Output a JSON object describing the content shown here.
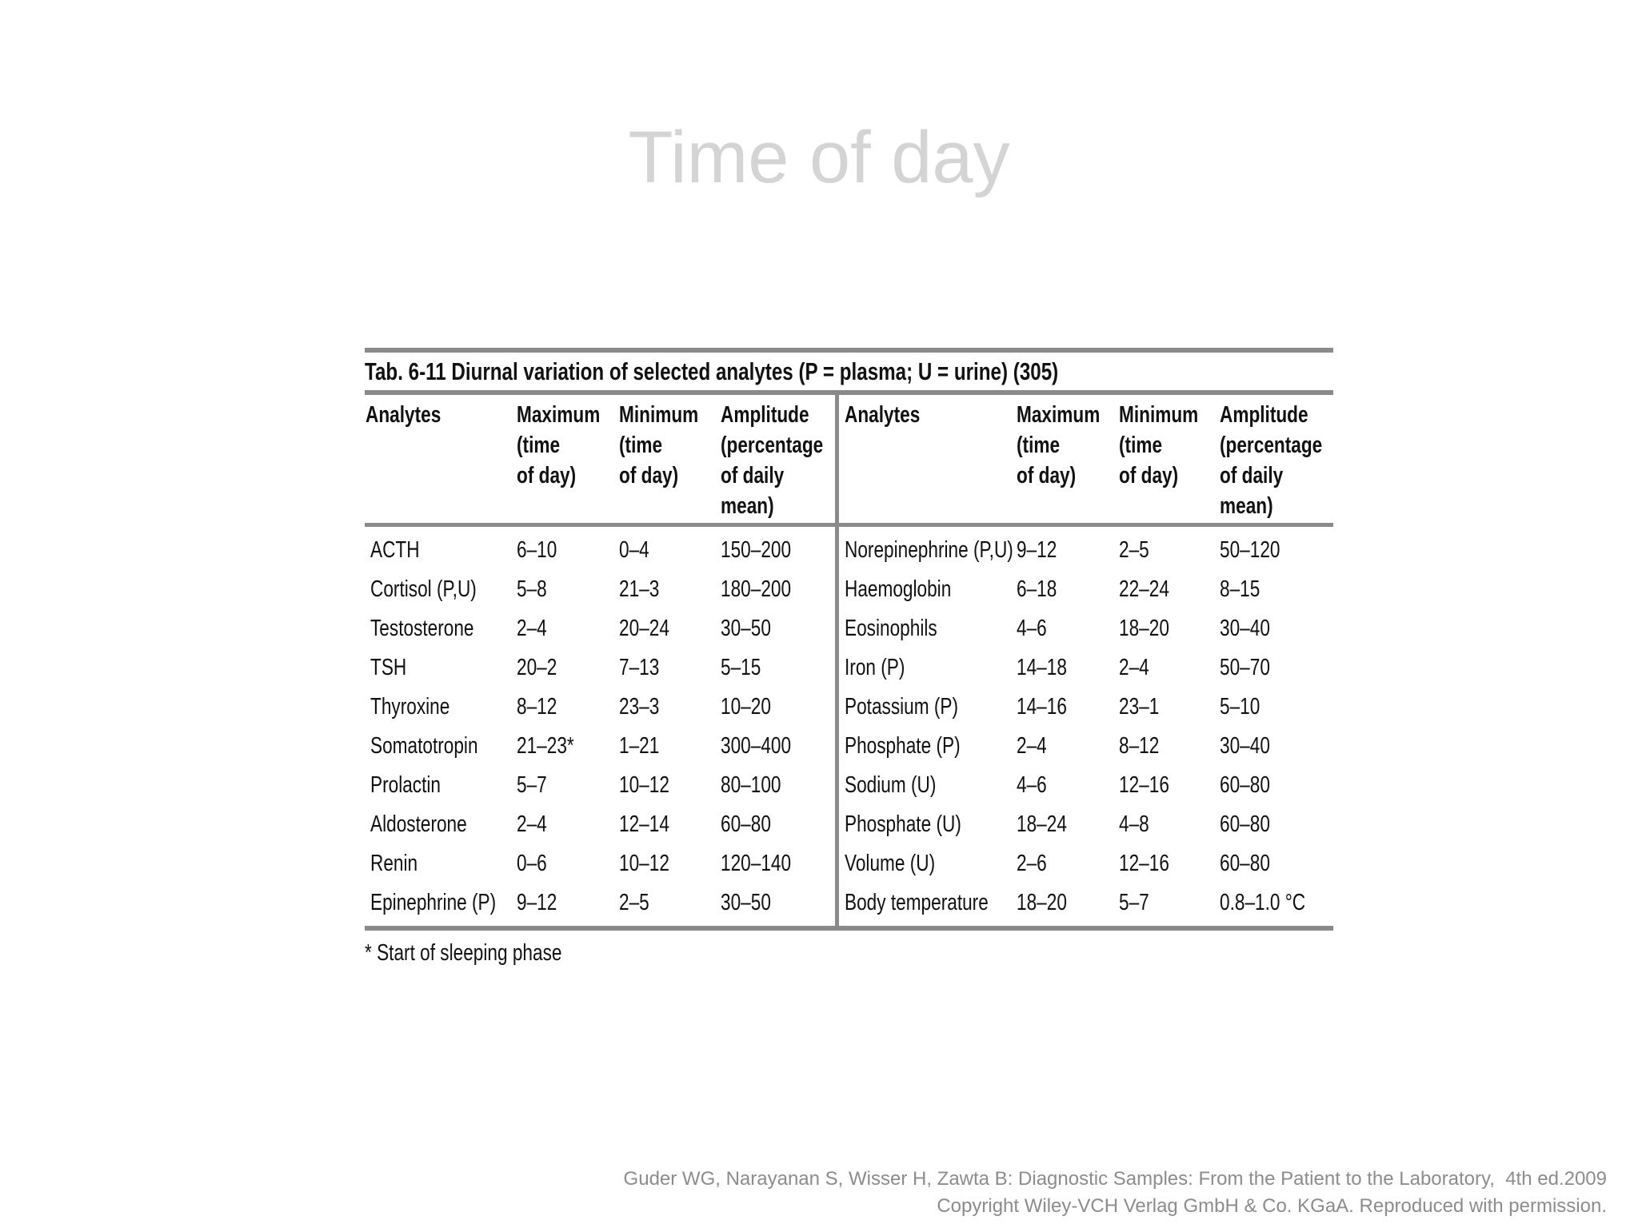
{
  "title": "Time of day",
  "table": {
    "caption": "Tab. 6-11 Diurnal variation of selected analytes (P = plasma; U = urine) (305)",
    "headers": [
      [
        "Analytes"
      ],
      [
        "Maximum",
        "(time",
        "of day)"
      ],
      [
        "Minimum",
        "(time",
        "of day)"
      ],
      [
        "Amplitude",
        "(percentage",
        "of daily",
        "mean)"
      ],
      [
        "Analytes"
      ],
      [
        "Maximum",
        "(time",
        "of day)"
      ],
      [
        "Minimum",
        "(time",
        "of day)"
      ],
      [
        "Amplitude",
        "(percentage",
        "of daily",
        "mean)"
      ]
    ],
    "rows": [
      [
        "ACTH",
        "6–10",
        "0–4",
        "150–200",
        "Norepinephrine (P,U)",
        "9–12",
        "2–5",
        "50–120"
      ],
      [
        "Cortisol (P,U)",
        "5–8",
        "21–3",
        "180–200",
        "Haemoglobin",
        "6–18",
        "22–24",
        "8–15"
      ],
      [
        "Testosterone",
        "2–4",
        "20–24",
        "30–50",
        "Eosinophils",
        "4–6",
        "18–20",
        "30–40"
      ],
      [
        "TSH",
        "20–2",
        "7–13",
        "5–15",
        "Iron (P)",
        "14–18",
        "2–4",
        "50–70"
      ],
      [
        "Thyroxine",
        "8–12",
        "23–3",
        "10–20",
        "Potassium (P)",
        "14–16",
        "23–1",
        "5–10"
      ],
      [
        "Somatotropin",
        "21–23*",
        "1–21",
        "300–400",
        "Phosphate (P)",
        "2–4",
        "8–12",
        "30–40"
      ],
      [
        "Prolactin",
        "5–7",
        "10–12",
        "80–100",
        "Sodium (U)",
        "4–6",
        "12–16",
        "60–80"
      ],
      [
        "Aldosterone",
        "2–4",
        "12–14",
        "60–80",
        "Phosphate (U)",
        "18–24",
        "4–8",
        "60–80"
      ],
      [
        "Renin",
        "0–6",
        "10–12",
        "120–140",
        "Volume (U)",
        "2–6",
        "12–16",
        "60–80"
      ],
      [
        "Epinephrine (P)",
        "9–12",
        "2–5",
        "30–50",
        "Body temperature",
        "18–20",
        "5–7",
        "0.8–1.0 °C"
      ]
    ],
    "footnote": "* Start of sleeping phase"
  },
  "citation": [
    "Guder WG, Narayanan S, Wisser H, Zawta B: Diagnostic Samples: From the Patient to the Laboratory,  4th ed.2009",
    "Copyright Wiley-VCH Verlag GmbH & Co. KGaA. Reproduced with permission."
  ]
}
